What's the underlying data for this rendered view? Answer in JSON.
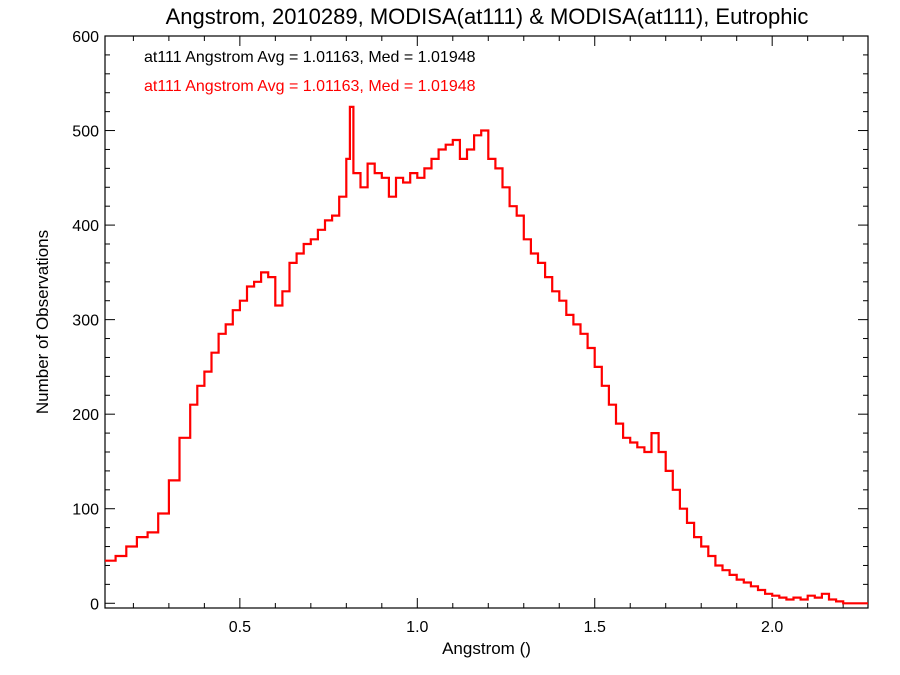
{
  "chart_data": {
    "type": "line",
    "title": "Angstrom, 2010289, MODISA(at111) & MODISA(at111), Eutrophic",
    "xlabel": "Angstrom ()",
    "ylabel": "Number of Observations",
    "xlim": [
      0.12,
      2.27
    ],
    "ylim": [
      -5,
      600
    ],
    "xticks": [
      0.5,
      1.0,
      1.5,
      2.0
    ],
    "xtick_labels": [
      "0.5",
      "1.0",
      "1.5",
      "2.0"
    ],
    "yticks": [
      0,
      100,
      200,
      300,
      400,
      500,
      600
    ],
    "ytick_labels": [
      "0",
      "100",
      "200",
      "300",
      "400",
      "500",
      "600"
    ],
    "grid": false,
    "legend": [
      {
        "text": "at111 Angstrom Avg = 1.01163, Med = 1.01948",
        "color": "#000000"
      },
      {
        "text": "at111 Angstrom Avg = 1.01163, Med = 1.01948",
        "color": "#ff0000"
      }
    ],
    "series": [
      {
        "color": "#ff0000",
        "step": true,
        "x": [
          0.12,
          0.15,
          0.18,
          0.21,
          0.24,
          0.27,
          0.3,
          0.33,
          0.36,
          0.38,
          0.4,
          0.42,
          0.44,
          0.46,
          0.48,
          0.5,
          0.52,
          0.54,
          0.56,
          0.58,
          0.6,
          0.62,
          0.64,
          0.66,
          0.68,
          0.7,
          0.72,
          0.74,
          0.76,
          0.78,
          0.8,
          0.81,
          0.82,
          0.84,
          0.86,
          0.88,
          0.9,
          0.92,
          0.94,
          0.96,
          0.98,
          1.0,
          1.02,
          1.04,
          1.06,
          1.08,
          1.1,
          1.12,
          1.14,
          1.16,
          1.18,
          1.2,
          1.22,
          1.24,
          1.26,
          1.28,
          1.3,
          1.32,
          1.34,
          1.36,
          1.38,
          1.4,
          1.42,
          1.44,
          1.46,
          1.48,
          1.5,
          1.52,
          1.54,
          1.56,
          1.58,
          1.6,
          1.62,
          1.64,
          1.66,
          1.68,
          1.7,
          1.72,
          1.74,
          1.76,
          1.78,
          1.8,
          1.82,
          1.84,
          1.86,
          1.88,
          1.9,
          1.92,
          1.94,
          1.96,
          1.98,
          2.0,
          2.02,
          2.04,
          2.06,
          2.08,
          2.1,
          2.12,
          2.14,
          2.16,
          2.18,
          2.2,
          2.22,
          2.25
        ],
        "values": [
          45,
          50,
          60,
          70,
          75,
          95,
          130,
          175,
          210,
          230,
          245,
          265,
          285,
          295,
          310,
          320,
          335,
          340,
          350,
          345,
          315,
          330,
          360,
          370,
          380,
          385,
          395,
          405,
          410,
          430,
          470,
          525,
          455,
          440,
          465,
          455,
          450,
          430,
          450,
          445,
          455,
          450,
          460,
          470,
          480,
          485,
          490,
          470,
          480,
          495,
          500,
          470,
          460,
          440,
          420,
          410,
          385,
          370,
          360,
          345,
          330,
          320,
          305,
          295,
          285,
          270,
          250,
          230,
          210,
          190,
          175,
          170,
          165,
          160,
          180,
          160,
          140,
          120,
          100,
          85,
          70,
          60,
          50,
          40,
          35,
          30,
          25,
          22,
          18,
          14,
          10,
          8,
          6,
          4,
          6,
          4,
          8,
          6,
          10,
          4,
          2,
          0,
          0,
          0
        ]
      }
    ]
  }
}
